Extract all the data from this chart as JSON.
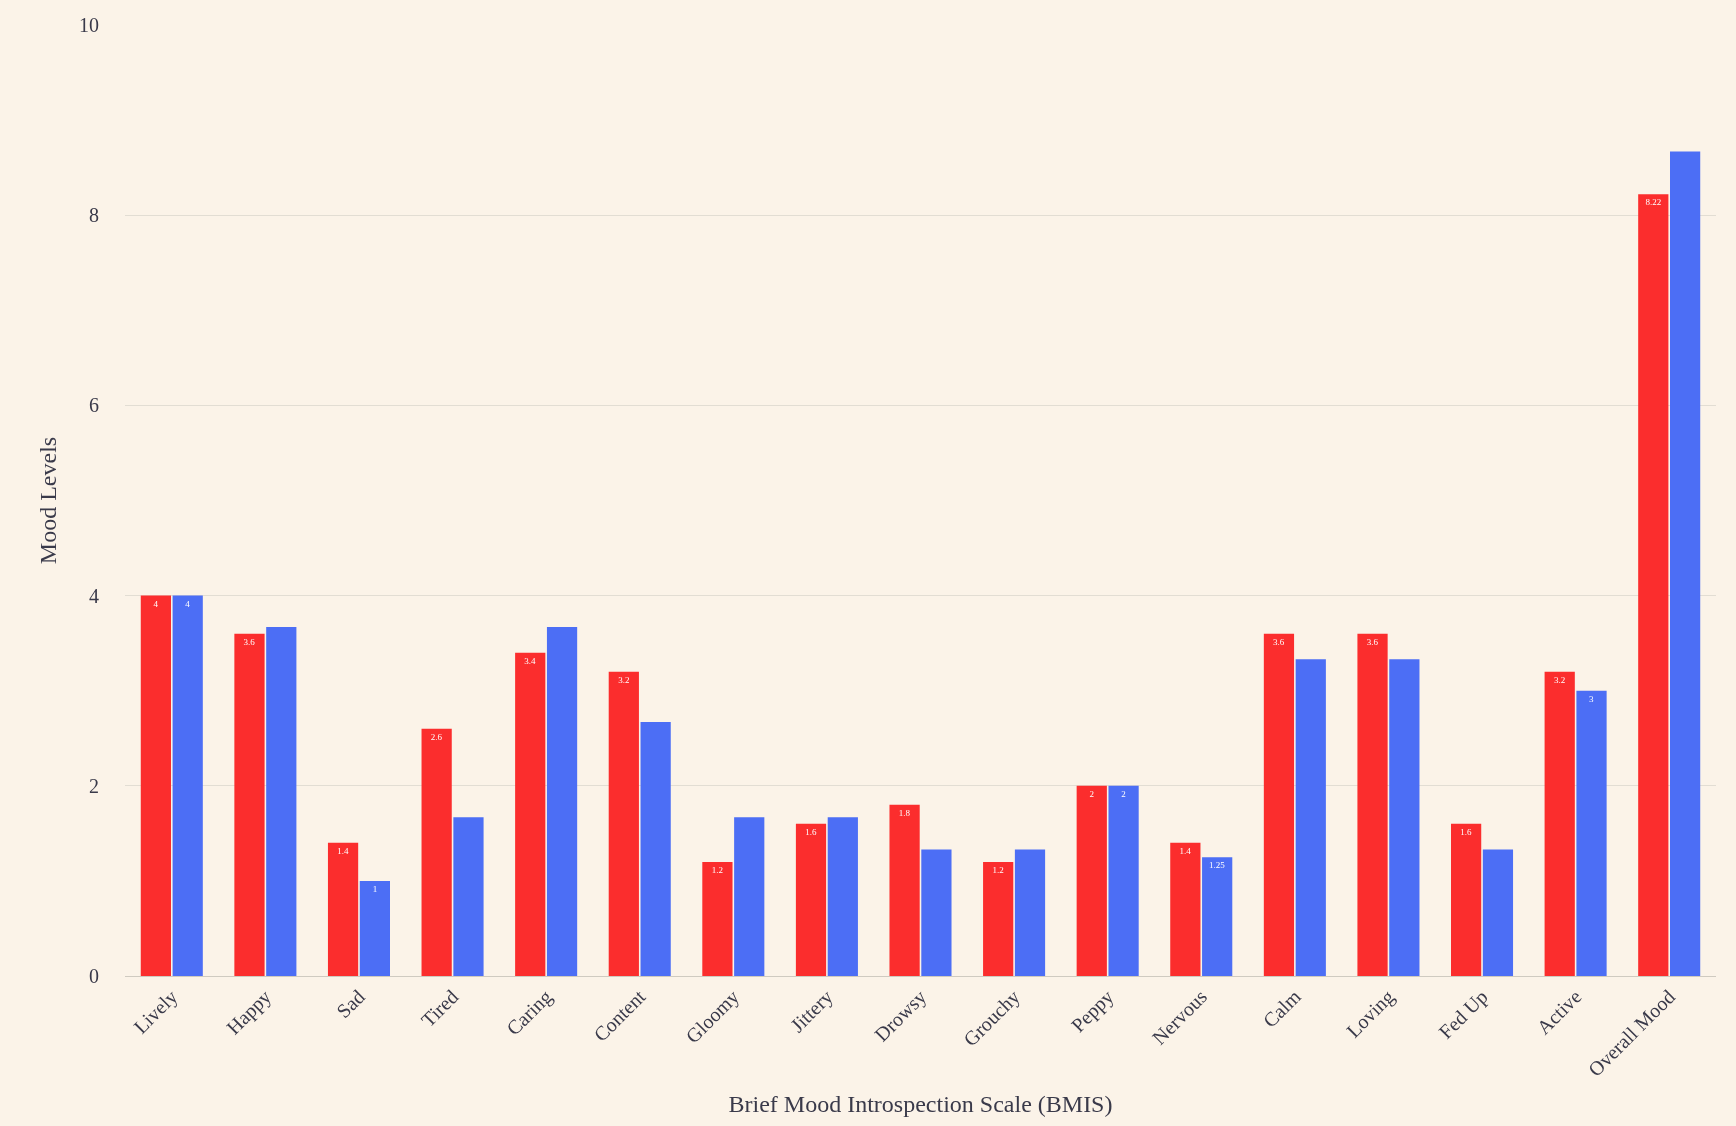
{
  "chart_data": {
    "type": "bar",
    "xlabel": "Brief Mood Introspection Scale (BMIS)",
    "ylabel": "Mood Levels",
    "categories": [
      "Lively",
      "Happy",
      "Sad",
      "Tired",
      "Caring",
      "Content",
      "Gloomy",
      "Jittery",
      "Drowsy",
      "Grouchy",
      "Peppy",
      "Nervous",
      "Calm",
      "Loving",
      "Fed Up",
      "Active",
      "Overall Mood"
    ],
    "series": [
      {
        "color": "#fb2d2d",
        "values": [
          4,
          3.6,
          1.4,
          2.6,
          3.4,
          3.2,
          1.2,
          1.6,
          1.8,
          1.2,
          2,
          1.4,
          3.6,
          3.6,
          1.6,
          3.2,
          8.22
        ],
        "value_labels": [
          "4",
          "3.6",
          "1.4",
          "2.6",
          "3.4",
          "3.2",
          "1.2",
          "1.6",
          "1.8",
          "1.2",
          "2",
          "1.4",
          "3.6",
          "3.6",
          "1.6",
          "3.2",
          "8.22"
        ]
      },
      {
        "color": "#4c6ef5",
        "values": [
          4,
          3.67,
          1,
          1.67,
          3.67,
          2.67,
          1.67,
          1.67,
          1.33,
          1.33,
          2,
          1.25,
          3.33,
          3.33,
          1.33,
          3,
          8.67
        ],
        "value_labels": [
          "4",
          null,
          "1",
          null,
          null,
          null,
          null,
          null,
          null,
          null,
          "2",
          "1.25",
          null,
          null,
          null,
          "3",
          null
        ]
      }
    ],
    "ylim": [
      0,
      10
    ],
    "yticks": [
      0,
      2,
      4,
      6,
      8,
      10
    ],
    "grid": "y"
  }
}
